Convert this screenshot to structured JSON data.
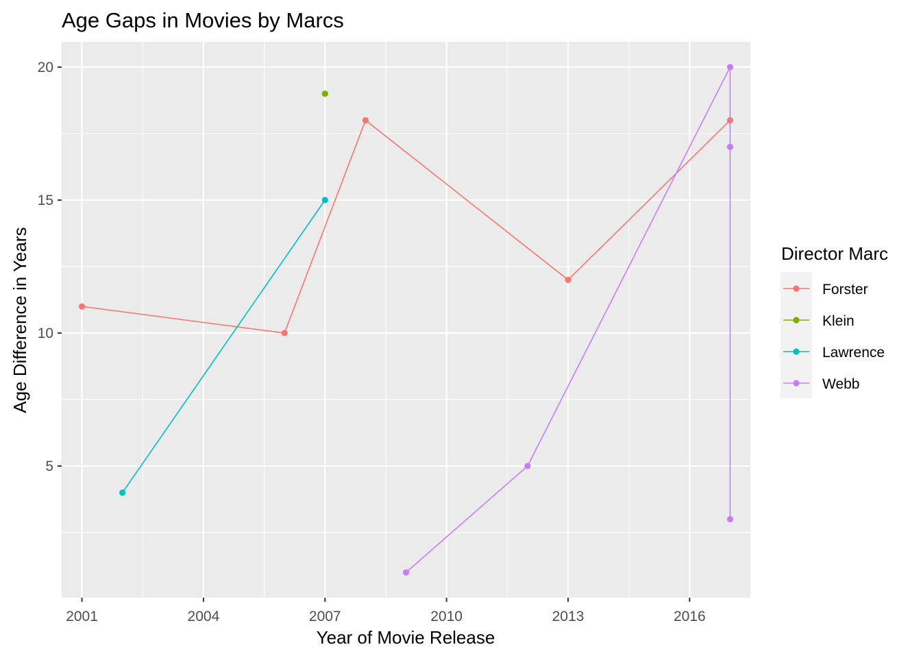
{
  "chart_data": {
    "type": "line",
    "title": "Age Gaps in Movies by Marcs",
    "xlabel": "Year of Movie Release",
    "ylabel": "Age Difference in Years",
    "xlim": [
      2000.5,
      2017.5
    ],
    "ylim": [
      0.05,
      20.95
    ],
    "x_ticks": [
      2001,
      2004,
      2007,
      2010,
      2013,
      2016
    ],
    "y_ticks": [
      5,
      10,
      15,
      20
    ],
    "grid": true,
    "legend": {
      "title": "Director Marc",
      "position": "right"
    },
    "series": [
      {
        "name": "Forster",
        "color": "#F8766D",
        "points": [
          [
            2001,
            11
          ],
          [
            2006,
            10
          ],
          [
            2008,
            18
          ],
          [
            2013,
            12
          ],
          [
            2017,
            18
          ]
        ]
      },
      {
        "name": "Klein",
        "color": "#7CAE00",
        "points": [
          [
            2007,
            19
          ]
        ]
      },
      {
        "name": "Lawrence",
        "color": "#00BFC4",
        "points": [
          [
            2002,
            4
          ],
          [
            2007,
            15
          ]
        ]
      },
      {
        "name": "Webb",
        "color": "#C77CFF",
        "points": [
          [
            2009,
            1
          ],
          [
            2012,
            5
          ],
          [
            2017,
            20
          ],
          [
            2017,
            17
          ],
          [
            2017,
            3
          ]
        ]
      }
    ]
  }
}
